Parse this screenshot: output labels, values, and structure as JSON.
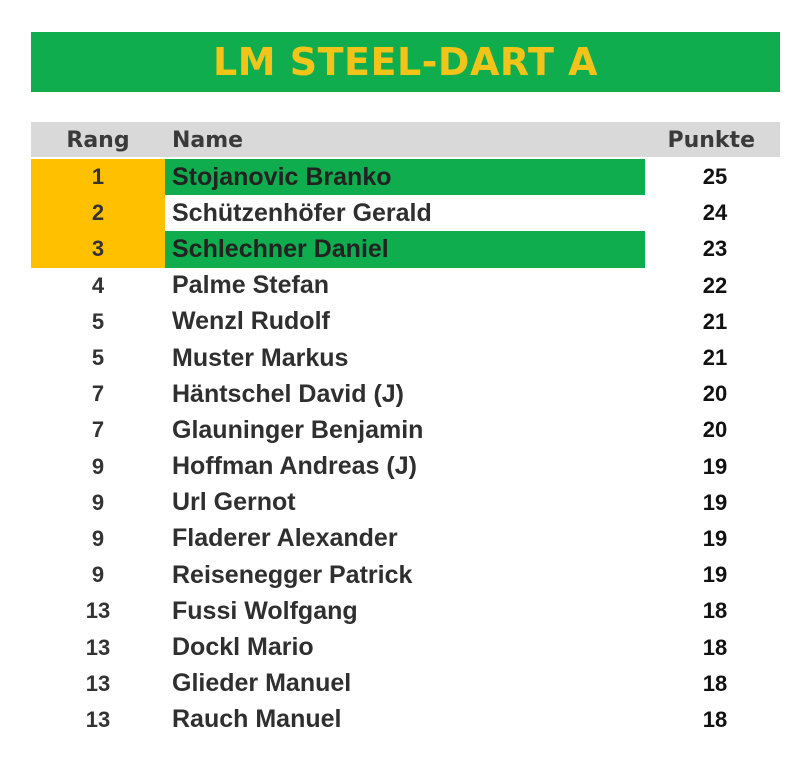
{
  "title": "LM STEEL-DART A",
  "headers": {
    "rang": "Rang",
    "name": "Name",
    "punkte": "Punkte"
  },
  "colors": {
    "green": "#0fad4e",
    "gold": "#ffc000",
    "title_text": "#f2c318",
    "header_bg": "#d9d9d9"
  },
  "rows": [
    {
      "rang": "1",
      "name": "Stojanovic Branko",
      "punkte": "25",
      "podium": true,
      "green": true
    },
    {
      "rang": "2",
      "name": "Schützenhöfer Gerald",
      "punkte": "24",
      "podium": true,
      "green": false
    },
    {
      "rang": "3",
      "name": "Schlechner Daniel",
      "punkte": "23",
      "podium": true,
      "green": true
    },
    {
      "rang": "4",
      "name": "Palme Stefan",
      "punkte": "22",
      "podium": false,
      "green": false
    },
    {
      "rang": "5",
      "name": "Wenzl Rudolf",
      "punkte": "21",
      "podium": false,
      "green": false
    },
    {
      "rang": "5",
      "name": "Muster Markus",
      "punkte": "21",
      "podium": false,
      "green": false
    },
    {
      "rang": "7",
      "name": "Häntschel David (J)",
      "punkte": "20",
      "podium": false,
      "green": false
    },
    {
      "rang": "7",
      "name": "Glauninger Benjamin",
      "punkte": "20",
      "podium": false,
      "green": false
    },
    {
      "rang": "9",
      "name": "Hoffman Andreas (J)",
      "punkte": "19",
      "podium": false,
      "green": false
    },
    {
      "rang": "9",
      "name": "Url Gernot",
      "punkte": "19",
      "podium": false,
      "green": false
    },
    {
      "rang": "9",
      "name": "Fladerer Alexander",
      "punkte": "19",
      "podium": false,
      "green": false
    },
    {
      "rang": "9",
      "name": "Reisenegger Patrick",
      "punkte": "19",
      "podium": false,
      "green": false
    },
    {
      "rang": "13",
      "name": "Fussi Wolfgang",
      "punkte": "18",
      "podium": false,
      "green": false
    },
    {
      "rang": "13",
      "name": "Dockl Mario",
      "punkte": "18",
      "podium": false,
      "green": false
    },
    {
      "rang": "13",
      "name": "Glieder Manuel",
      "punkte": "18",
      "podium": false,
      "green": false
    },
    {
      "rang": "13",
      "name": "Rauch Manuel",
      "punkte": "18",
      "podium": false,
      "green": false
    }
  ]
}
